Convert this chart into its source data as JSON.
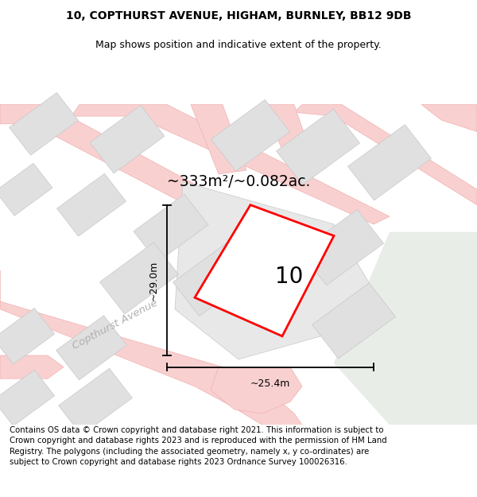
{
  "title_line1": "10, COPTHURST AVENUE, HIGHAM, BURNLEY, BB12 9DB",
  "title_line2": "Map shows position and indicative extent of the property.",
  "area_text": "~333m²/~0.082ac.",
  "property_number": "10",
  "dim_vertical": "~29.0m",
  "dim_horizontal": "~25.4m",
  "street_label": "Copthurst Avenue",
  "footer_text": "Contains OS data © Crown copyright and database right 2021. This information is subject to Crown copyright and database rights 2023 and is reproduced with the permission of HM Land Registry. The polygons (including the associated geometry, namely x, y co-ordinates) are subject to Crown copyright and database rights 2023 Ordnance Survey 100026316.",
  "bg_color": "#f2f2f2",
  "plot_fill": "#ffffff",
  "plot_edge": "#ff0000",
  "road_color": "#f9d0d0",
  "road_edge": "#f0b0b0",
  "building_color": "#e0e0e0",
  "building_edge": "#c8c8c8",
  "green_area": "#e8ede8",
  "parcel_color": "#e8e8e8",
  "white_bg": "#ffffff"
}
